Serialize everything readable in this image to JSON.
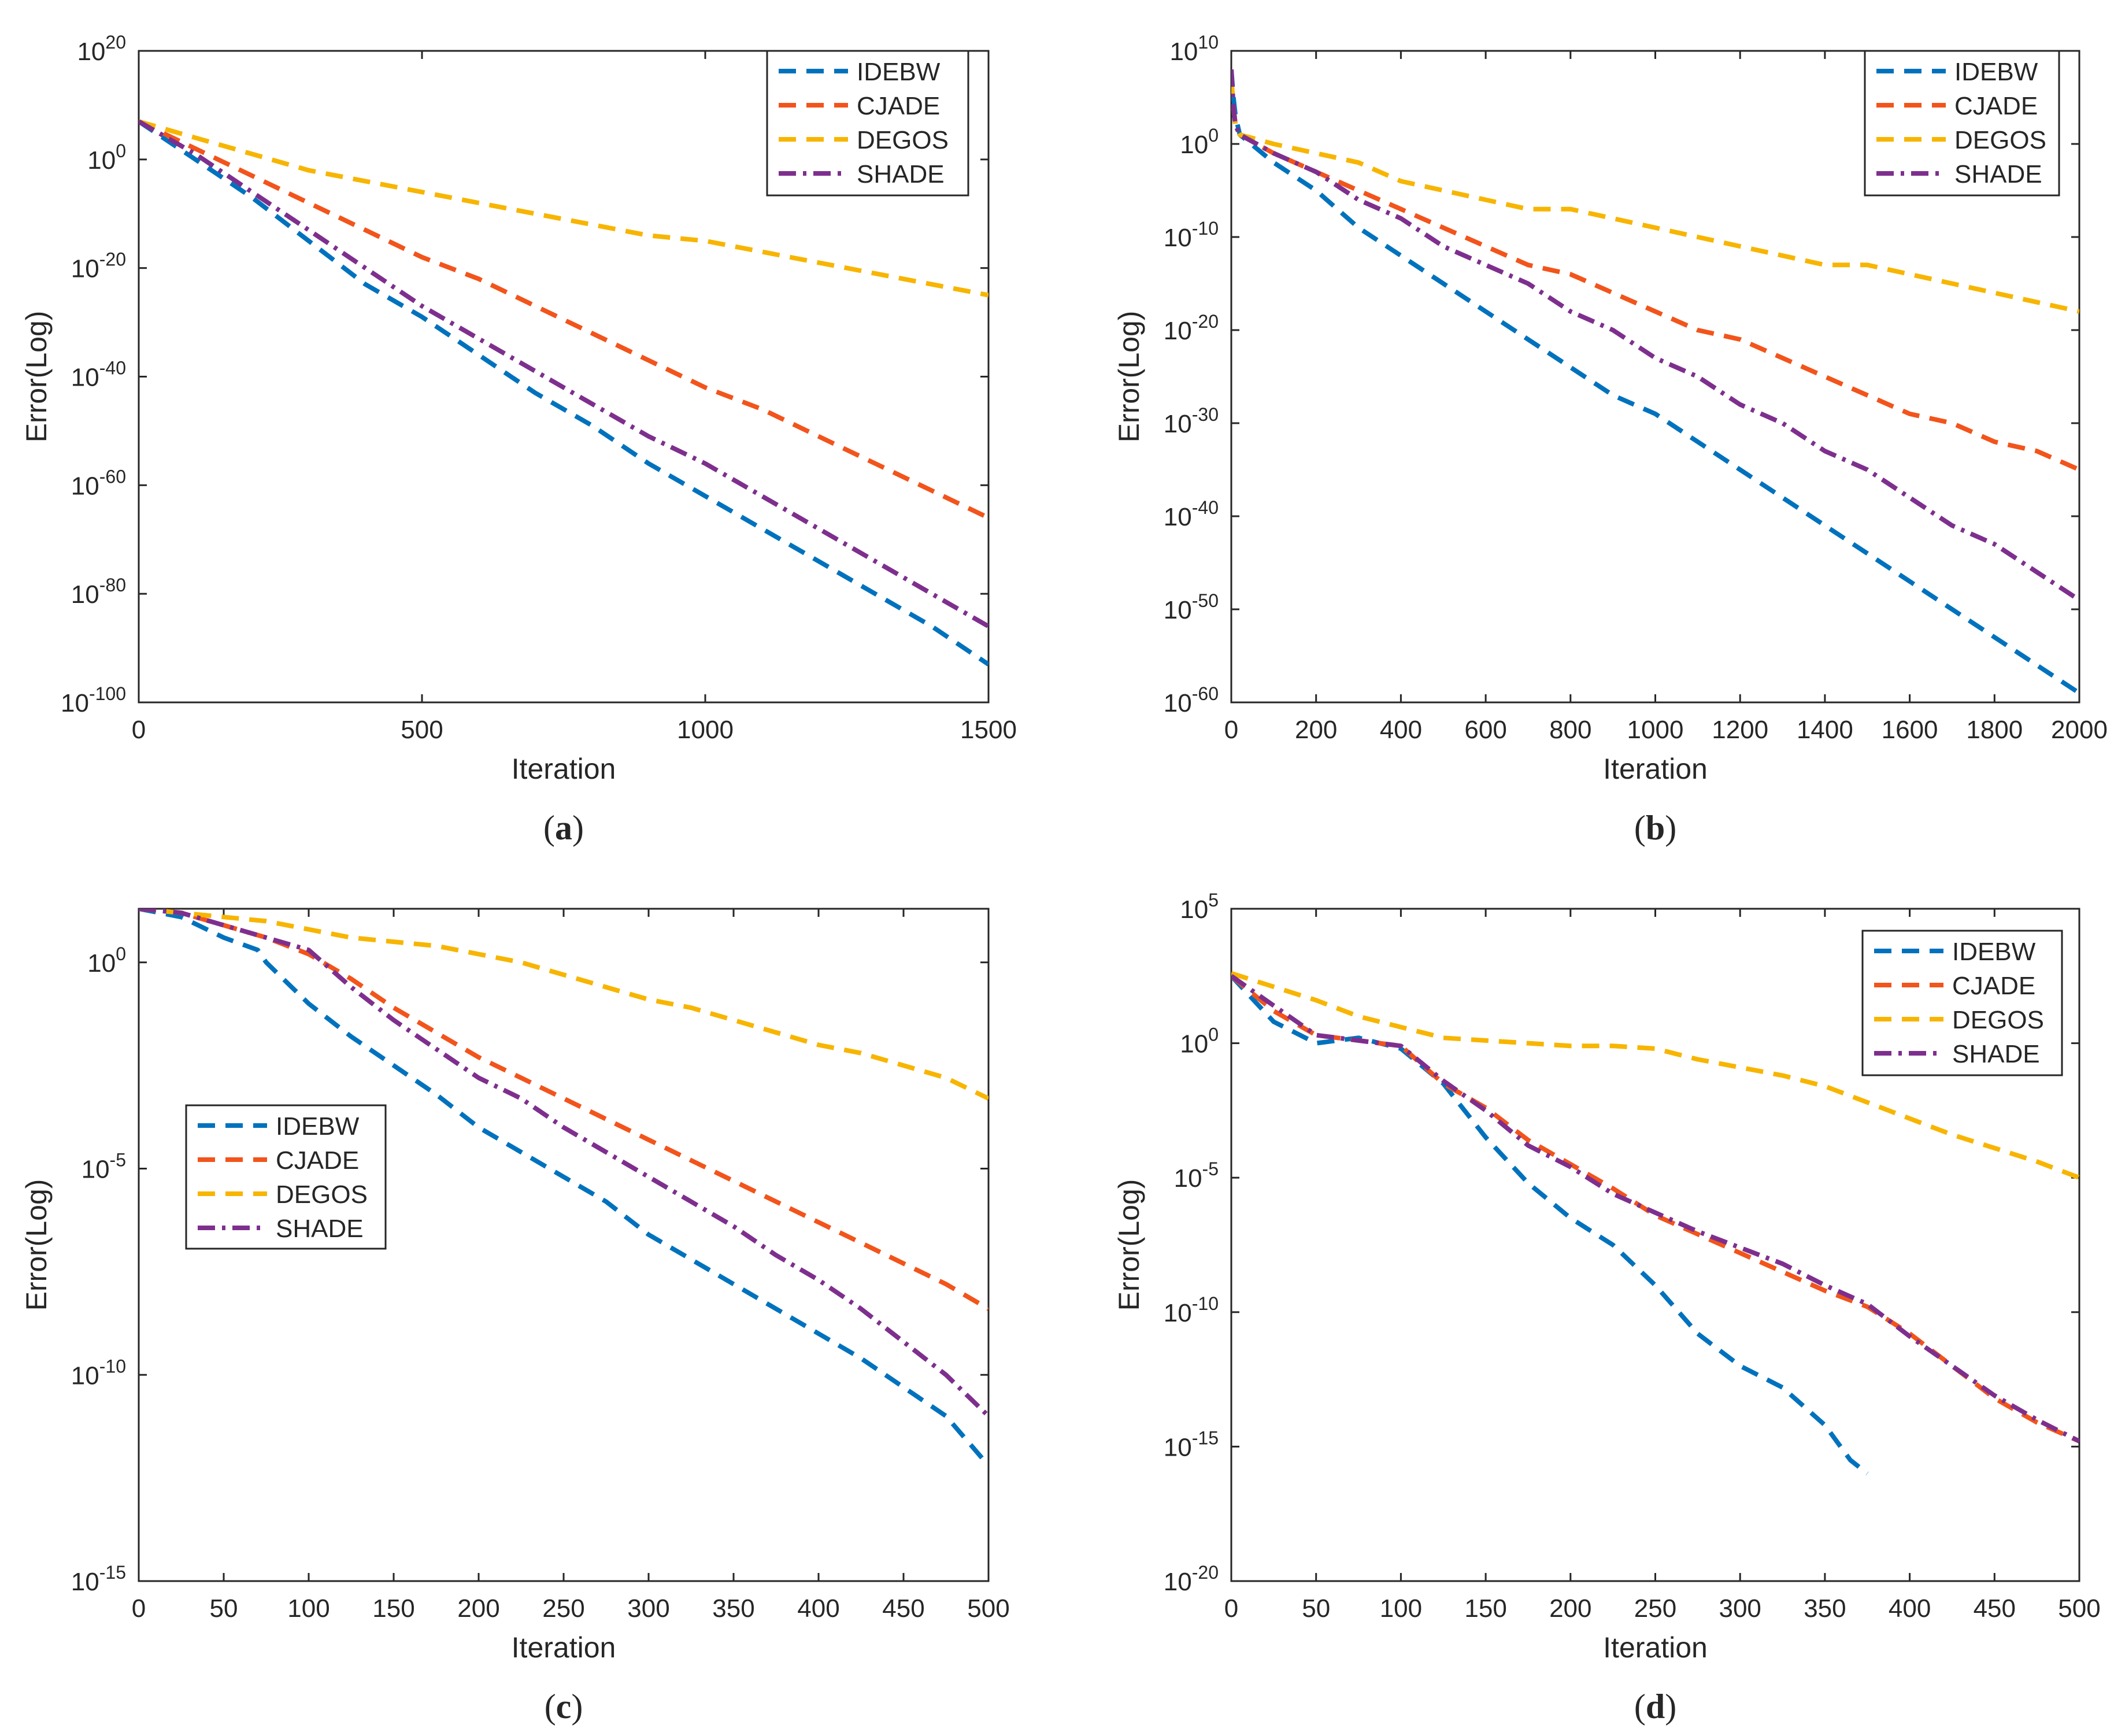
{
  "figure": {
    "colors": {
      "IDEBW": "#0072BD",
      "CJADE": "#F2541B",
      "DEGOS": "#F7B500",
      "SHADE": "#7E2F8E",
      "axis": "#262626",
      "background": "#ffffff"
    }
  },
  "chart_data": [
    {
      "id": "a",
      "type": "line",
      "caption": "a",
      "xlabel": "Iteration",
      "ylabel": "Error(Log)",
      "xscale": "linear",
      "yscale": "log",
      "xlim": [
        0,
        1500
      ],
      "ylim_exp": [
        -100,
        20
      ],
      "xticks": [
        0,
        500,
        1000,
        1500
      ],
      "xtick_labels": [
        "0",
        "500",
        "1000",
        "1500"
      ],
      "yticks_exp": [
        20,
        0,
        -20,
        -40,
        -60,
        -80,
        -100
      ],
      "ytick_labels": [
        {
          "base": "10",
          "exp": "20"
        },
        {
          "base": "10",
          "exp": "0"
        },
        {
          "base": "10",
          "exp": "-20"
        },
        {
          "base": "10",
          "exp": "-40"
        },
        {
          "base": "10",
          "exp": "-60"
        },
        {
          "base": "10",
          "exp": "-80"
        },
        {
          "base": "10",
          "exp": "-100"
        }
      ],
      "legend_position": "top-right",
      "series": [
        {
          "name": "IDEBW",
          "style": "dashed",
          "x": [
            0,
            100,
            200,
            300,
            400,
            500,
            600,
            700,
            800,
            900,
            1000,
            1100,
            1200,
            1300,
            1400,
            1500
          ],
          "y_exp": [
            7,
            0,
            -7,
            -15,
            -23,
            -29,
            -36,
            -43,
            -49,
            -56,
            -62,
            -68,
            -74,
            -80,
            -86,
            -93
          ]
        },
        {
          "name": "CJADE",
          "style": "dashed",
          "x": [
            0,
            100,
            200,
            300,
            400,
            500,
            600,
            700,
            800,
            900,
            1000,
            1100,
            1200,
            1300,
            1400,
            1500
          ],
          "y_exp": [
            7,
            2,
            -3,
            -8,
            -13,
            -18,
            -22,
            -27,
            -32,
            -37,
            -42,
            -46,
            -51,
            -56,
            -61,
            -66
          ]
        },
        {
          "name": "DEGOS",
          "style": "dashed",
          "x": [
            0,
            100,
            200,
            300,
            400,
            500,
            600,
            700,
            800,
            900,
            1000,
            1100,
            1200,
            1300,
            1400,
            1500
          ],
          "y_exp": [
            7,
            4,
            1,
            -2,
            -4,
            -6,
            -8,
            -10,
            -12,
            -14,
            -15,
            -17,
            -19,
            -21,
            -23,
            -25
          ]
        },
        {
          "name": "SHADE",
          "style": "dashdot",
          "x": [
            0,
            100,
            200,
            300,
            400,
            500,
            600,
            700,
            800,
            900,
            1000,
            1100,
            1200,
            1300,
            1400,
            1500
          ],
          "y_exp": [
            7,
            1,
            -6,
            -13,
            -20,
            -27,
            -33,
            -39,
            -45,
            -51,
            -56,
            -62,
            -68,
            -74,
            -80,
            -86
          ]
        }
      ],
      "legend": [
        "IDEBW",
        "CJADE",
        "DEGOS",
        "SHADE"
      ]
    },
    {
      "id": "b",
      "type": "line",
      "caption": "b",
      "xlabel": "Iteration",
      "ylabel": "Error(Log)",
      "xscale": "linear",
      "yscale": "log",
      "xlim": [
        0,
        2000
      ],
      "ylim_exp": [
        -60,
        10
      ],
      "xticks": [
        0,
        200,
        400,
        600,
        800,
        1000,
        1200,
        1400,
        1600,
        1800,
        2000
      ],
      "xtick_labels": [
        "0",
        "200",
        "400",
        "600",
        "800",
        "1000",
        "1200",
        "1400",
        "1600",
        "1800",
        "2000"
      ],
      "yticks_exp": [
        10,
        0,
        -10,
        -20,
        -30,
        -40,
        -50,
        -60
      ],
      "ytick_labels": [
        {
          "base": "10",
          "exp": "10"
        },
        {
          "base": "10",
          "exp": "0"
        },
        {
          "base": "10",
          "exp": "-10"
        },
        {
          "base": "10",
          "exp": "-20"
        },
        {
          "base": "10",
          "exp": "-30"
        },
        {
          "base": "10",
          "exp": "-40"
        },
        {
          "base": "10",
          "exp": "-50"
        },
        {
          "base": "10",
          "exp": "-60"
        }
      ],
      "legend_position": "top-right",
      "series": [
        {
          "name": "IDEBW",
          "style": "dashed",
          "x": [
            0,
            5,
            10,
            20,
            100,
            200,
            300,
            400,
            500,
            600,
            700,
            800,
            900,
            1000,
            1100,
            1200,
            1300,
            1400,
            1500,
            1600,
            1700,
            1800,
            1900,
            2000
          ],
          "y_exp": [
            8,
            5,
            3,
            1,
            -2,
            -5,
            -9,
            -12,
            -15,
            -18,
            -21,
            -24,
            -27,
            -29,
            -32,
            -35,
            -38,
            -41,
            -44,
            -47,
            -50,
            -53,
            -56,
            -59
          ]
        },
        {
          "name": "CJADE",
          "style": "dashed",
          "x": [
            0,
            5,
            10,
            20,
            100,
            200,
            300,
            400,
            500,
            600,
            700,
            800,
            900,
            1000,
            1100,
            1200,
            1300,
            1400,
            1500,
            1600,
            1700,
            1800,
            1900,
            2000
          ],
          "y_exp": [
            7,
            4,
            2,
            1,
            -1,
            -3,
            -5,
            -7,
            -9,
            -11,
            -13,
            -14,
            -16,
            -18,
            -20,
            -21,
            -23,
            -25,
            -27,
            -29,
            -30,
            -32,
            -33,
            -35
          ]
        },
        {
          "name": "DEGOS",
          "style": "dashed",
          "x": [
            0,
            5,
            10,
            20,
            100,
            200,
            300,
            400,
            500,
            600,
            700,
            800,
            900,
            1000,
            1100,
            1200,
            1300,
            1400,
            1500,
            1600,
            1700,
            1800,
            1900,
            2000
          ],
          "y_exp": [
            7,
            4,
            2,
            1,
            0,
            -1,
            -2,
            -4,
            -5,
            -6,
            -7,
            -7,
            -8,
            -9,
            -10,
            -11,
            -12,
            -13,
            -13,
            -14,
            -15,
            -16,
            -17,
            -18
          ]
        },
        {
          "name": "SHADE",
          "style": "dashdot",
          "x": [
            0,
            5,
            10,
            20,
            100,
            200,
            300,
            400,
            500,
            600,
            700,
            800,
            900,
            1000,
            1100,
            1200,
            1300,
            1400,
            1500,
            1600,
            1700,
            1800,
            1900,
            2000
          ],
          "y_exp": [
            8,
            4,
            2,
            1,
            -1,
            -3,
            -6,
            -8,
            -11,
            -13,
            -15,
            -18,
            -20,
            -23,
            -25,
            -28,
            -30,
            -33,
            -35,
            -38,
            -41,
            -43,
            -46,
            -49
          ]
        }
      ],
      "legend": [
        "IDEBW",
        "CJADE",
        "DEGOS",
        "SHADE"
      ]
    },
    {
      "id": "c",
      "type": "line",
      "caption": "c",
      "xlabel": "Iteration",
      "ylabel": "Error(Log)",
      "xscale": "linear",
      "yscale": "log",
      "xlim": [
        0,
        500
      ],
      "ylim_exp": [
        -15,
        1.3
      ],
      "xticks": [
        0,
        50,
        100,
        150,
        200,
        250,
        300,
        350,
        400,
        450,
        500
      ],
      "xtick_labels": [
        "0",
        "50",
        "100",
        "150",
        "200",
        "250",
        "300",
        "350",
        "400",
        "450",
        "500"
      ],
      "yticks_exp": [
        0,
        -5,
        -10,
        -15
      ],
      "ytick_labels": [
        {
          "base": "10",
          "exp": "0"
        },
        {
          "base": "10",
          "exp": "-5"
        },
        {
          "base": "10",
          "exp": "-10"
        },
        {
          "base": "10",
          "exp": "-15"
        }
      ],
      "legend_position": "middle-left",
      "series": [
        {
          "name": "IDEBW",
          "style": "dashed",
          "x": [
            0,
            25,
            50,
            70,
            75,
            90,
            100,
            125,
            150,
            175,
            200,
            225,
            250,
            275,
            300,
            325,
            350,
            375,
            400,
            425,
            450,
            475,
            500
          ],
          "y_exp": [
            1.3,
            1.1,
            0.6,
            0.3,
            0,
            -0.6,
            -1,
            -1.8,
            -2.5,
            -3.2,
            -4,
            -4.6,
            -5.2,
            -5.8,
            -6.6,
            -7.2,
            -7.8,
            -8.4,
            -9.0,
            -9.6,
            -10.3,
            -11,
            -12.2
          ]
        },
        {
          "name": "CJADE",
          "style": "dashed",
          "x": [
            0,
            25,
            50,
            75,
            100,
            125,
            150,
            175,
            200,
            225,
            250,
            275,
            300,
            325,
            350,
            375,
            400,
            425,
            450,
            475,
            500
          ],
          "y_exp": [
            1.3,
            1.2,
            0.9,
            0.6,
            0.2,
            -0.4,
            -1.1,
            -1.7,
            -2.3,
            -2.8,
            -3.3,
            -3.8,
            -4.3,
            -4.8,
            -5.3,
            -5.8,
            -6.3,
            -6.8,
            -7.3,
            -7.8,
            -8.4
          ]
        },
        {
          "name": "DEGOS",
          "style": "dashed",
          "x": [
            0,
            25,
            50,
            75,
            100,
            125,
            150,
            175,
            200,
            225,
            250,
            275,
            300,
            325,
            350,
            375,
            400,
            425,
            450,
            475,
            500
          ],
          "y_exp": [
            1.3,
            1.2,
            1.1,
            1.0,
            0.8,
            0.6,
            0.5,
            0.4,
            0.2,
            0,
            -0.3,
            -0.6,
            -0.9,
            -1.1,
            -1.4,
            -1.7,
            -2.0,
            -2.2,
            -2.5,
            -2.8,
            -3.3
          ]
        },
        {
          "name": "SHADE",
          "style": "dashdot",
          "x": [
            0,
            25,
            50,
            75,
            100,
            125,
            150,
            175,
            200,
            225,
            250,
            275,
            300,
            325,
            350,
            375,
            400,
            425,
            450,
            475,
            500
          ],
          "y_exp": [
            1.3,
            1.2,
            0.9,
            0.6,
            0.3,
            -0.6,
            -1.4,
            -2.1,
            -2.8,
            -3.3,
            -4.0,
            -4.6,
            -5.2,
            -5.8,
            -6.4,
            -7.1,
            -7.7,
            -8.4,
            -9.2,
            -10.0,
            -11.0
          ]
        }
      ],
      "legend": [
        "IDEBW",
        "CJADE",
        "DEGOS",
        "SHADE"
      ]
    },
    {
      "id": "d",
      "type": "line",
      "caption": "d",
      "xlabel": "Iteration",
      "ylabel": "Error(Log)",
      "xscale": "linear",
      "yscale": "log",
      "xlim": [
        0,
        500
      ],
      "ylim_exp": [
        -20,
        5
      ],
      "xticks": [
        0,
        50,
        100,
        150,
        200,
        250,
        300,
        350,
        400,
        450,
        500
      ],
      "xtick_labels": [
        "0",
        "50",
        "100",
        "150",
        "200",
        "250",
        "300",
        "350",
        "400",
        "450",
        "500"
      ],
      "yticks_exp": [
        5,
        0,
        -5,
        -10,
        -15,
        -20
      ],
      "ytick_labels": [
        {
          "base": "10",
          "exp": "5"
        },
        {
          "base": "10",
          "exp": "0"
        },
        {
          "base": "10",
          "exp": "-5"
        },
        {
          "base": "10",
          "exp": "-10"
        },
        {
          "base": "10",
          "exp": "-15"
        },
        {
          "base": "10",
          "exp": "-20"
        }
      ],
      "legend_position": "top-right",
      "series": [
        {
          "name": "IDEBW",
          "style": "dashed",
          "x": [
            0,
            25,
            50,
            75,
            100,
            125,
            150,
            175,
            200,
            225,
            250,
            275,
            300,
            325,
            350,
            365,
            375
          ],
          "y_exp": [
            2.5,
            0.8,
            0.0,
            0.2,
            -0.2,
            -1.5,
            -3.5,
            -5.2,
            -6.5,
            -7.5,
            -9.0,
            -10.8,
            -12.0,
            -12.8,
            -14.2,
            -15.5,
            -16.0
          ]
        },
        {
          "name": "CJADE",
          "style": "dashed",
          "x": [
            0,
            25,
            50,
            75,
            100,
            125,
            150,
            175,
            200,
            225,
            250,
            275,
            300,
            325,
            350,
            375,
            400,
            425,
            450,
            475,
            500
          ],
          "y_exp": [
            2.5,
            1.2,
            0.3,
            0.1,
            -0.1,
            -1.5,
            -2.4,
            -3.6,
            -4.5,
            -5.4,
            -6.4,
            -7.1,
            -7.8,
            -8.5,
            -9.2,
            -9.8,
            -10.8,
            -12.0,
            -13.2,
            -14.1,
            -14.8
          ]
        },
        {
          "name": "DEGOS",
          "style": "dashed",
          "x": [
            0,
            25,
            50,
            75,
            100,
            125,
            150,
            175,
            200,
            225,
            250,
            275,
            300,
            325,
            350,
            375,
            400,
            425,
            450,
            475,
            500
          ],
          "y_exp": [
            2.6,
            2.1,
            1.6,
            1.0,
            0.6,
            0.2,
            0.1,
            0.0,
            -0.1,
            -0.1,
            -0.2,
            -0.6,
            -0.9,
            -1.2,
            -1.6,
            -2.2,
            -2.8,
            -3.4,
            -3.9,
            -4.4,
            -5.0
          ]
        },
        {
          "name": "SHADE",
          "style": "dashdot",
          "x": [
            0,
            25,
            50,
            75,
            100,
            125,
            150,
            175,
            200,
            225,
            250,
            275,
            300,
            325,
            350,
            375,
            400,
            425,
            450,
            475,
            500
          ],
          "y_exp": [
            2.5,
            1.4,
            0.3,
            0.1,
            -0.1,
            -1.4,
            -2.5,
            -3.8,
            -4.6,
            -5.6,
            -6.3,
            -7.0,
            -7.6,
            -8.2,
            -9.0,
            -9.7,
            -10.9,
            -12.0,
            -13.1,
            -14.0,
            -14.8
          ]
        }
      ],
      "legend": [
        "IDEBW",
        "CJADE",
        "DEGOS",
        "SHADE"
      ]
    }
  ]
}
